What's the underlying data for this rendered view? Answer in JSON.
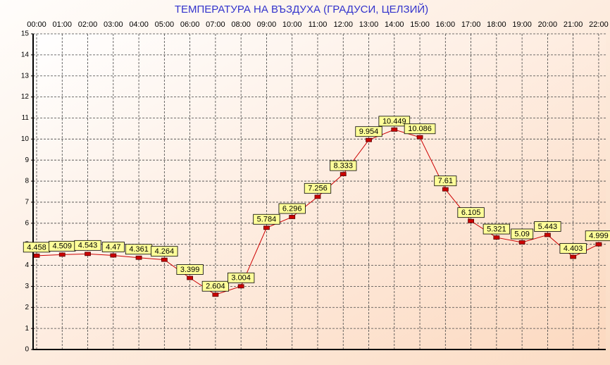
{
  "chart_data": {
    "type": "line",
    "title": "ТЕМПЕРАТУРА НА ВЪЗДУХА  (ГРАДУСИ, ЦЕЛЗИЙ)",
    "categories": [
      "00:00",
      "01:00",
      "02:00",
      "03:00",
      "04:00",
      "05:00",
      "06:00",
      "07:00",
      "08:00",
      "09:00",
      "10:00",
      "11:00",
      "12:00",
      "13:00",
      "14:00",
      "15:00",
      "16:00",
      "17:00",
      "18:00",
      "19:00",
      "20:00",
      "21:00",
      "22:00"
    ],
    "values": [
      4.458,
      4.509,
      4.543,
      4.47,
      4.361,
      4.264,
      3.399,
      2.604,
      3.004,
      5.784,
      6.296,
      7.256,
      8.333,
      9.954,
      10.449,
      10.086,
      7.61,
      6.105,
      5.321,
      5.09,
      5.443,
      4.403,
      4.999
    ],
    "color": "#cc0000",
    "ylim": [
      0,
      15
    ],
    "yticks": [
      0,
      1,
      2,
      3,
      4,
      5,
      6,
      7,
      8,
      9,
      10,
      11,
      12,
      13,
      14,
      15
    ],
    "grid": true
  }
}
